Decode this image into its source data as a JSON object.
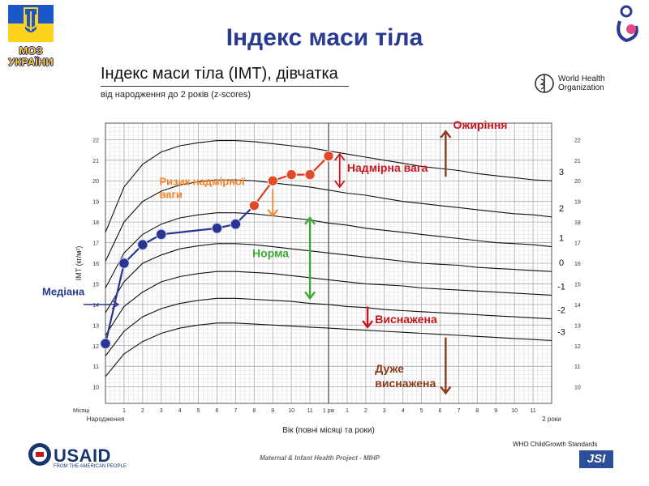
{
  "slide": {
    "title": "Індекс маси тіла",
    "logo_text": "МОЗ УКРАЇНИ",
    "who_logo_text": [
      "World Health",
      "Organization"
    ],
    "who_standards": "WHO ChildGrowth Standards",
    "usaid_text": "USAID",
    "usaid_sub": "FROM THE AMERICAN PEOPLE",
    "project_label": "Maternal & Infant Health Project - MIHP",
    "jsi_text": "JSI"
  },
  "chart_data": {
    "type": "line",
    "title": "Індекс маси тіла (IMT), дівчатка",
    "subtitle": "від народження до 2 років (z-scores)",
    "xlabel": "Вік (повні місяці та роки)",
    "ylabel": "IMT (кг/м²)",
    "xlim": [
      0,
      24
    ],
    "ylim": [
      9.2,
      22.8
    ],
    "grid": true,
    "y_ticks": [
      10,
      11,
      12,
      13,
      14,
      15,
      16,
      17,
      18,
      19,
      20,
      21,
      22
    ],
    "month_row_label": "Місяці",
    "x_top_labels": [
      "1",
      "2",
      "3",
      "4",
      "5",
      "6",
      "7",
      "8",
      "9",
      "10",
      "11",
      "1 рік",
      "1",
      "2",
      "3",
      "4",
      "5",
      "6",
      "7",
      "8",
      "9",
      "10",
      "11"
    ],
    "x_bottom_labels": {
      "birth": "Народження",
      "year2": "2 роки"
    },
    "z_labels": [
      "3",
      "2",
      "1",
      "0",
      "-1",
      "-2",
      "-3"
    ],
    "curve_months": [
      0,
      1,
      2,
      3,
      4,
      5,
      6,
      7,
      8,
      9,
      10,
      11,
      12,
      13,
      14,
      15,
      16,
      17,
      18,
      19,
      20,
      21,
      22,
      23,
      24
    ],
    "series": [
      {
        "name": "3",
        "values": [
          17.5,
          19.7,
          20.8,
          21.4,
          21.7,
          21.85,
          21.95,
          21.95,
          21.9,
          21.8,
          21.7,
          21.6,
          21.45,
          21.3,
          21.15,
          21.0,
          20.85,
          20.7,
          20.6,
          20.5,
          20.35,
          20.25,
          20.15,
          20.05,
          20.0
        ]
      },
      {
        "name": "2",
        "values": [
          16.1,
          18.0,
          19.0,
          19.5,
          19.8,
          19.95,
          20.05,
          20.05,
          20.0,
          19.9,
          19.8,
          19.7,
          19.55,
          19.4,
          19.3,
          19.15,
          19.0,
          18.9,
          18.8,
          18.7,
          18.6,
          18.5,
          18.4,
          18.35,
          18.25
        ]
      },
      {
        "name": "1",
        "values": [
          14.8,
          16.5,
          17.4,
          17.9,
          18.2,
          18.35,
          18.45,
          18.45,
          18.4,
          18.3,
          18.2,
          18.1,
          17.95,
          17.85,
          17.7,
          17.6,
          17.5,
          17.4,
          17.3,
          17.2,
          17.1,
          17.0,
          16.95,
          16.9,
          16.8
        ]
      },
      {
        "name": "0",
        "values": [
          13.6,
          15.1,
          16.0,
          16.4,
          16.7,
          16.85,
          16.95,
          16.95,
          16.9,
          16.8,
          16.7,
          16.6,
          16.5,
          16.4,
          16.3,
          16.2,
          16.1,
          16.0,
          15.95,
          15.9,
          15.8,
          15.75,
          15.7,
          15.65,
          15.6
        ]
      },
      {
        "name": "-1",
        "values": [
          12.5,
          13.9,
          14.6,
          15.1,
          15.35,
          15.5,
          15.6,
          15.6,
          15.55,
          15.5,
          15.4,
          15.3,
          15.2,
          15.1,
          15.0,
          14.95,
          14.9,
          14.8,
          14.75,
          14.7,
          14.65,
          14.6,
          14.55,
          14.5,
          14.45
        ]
      },
      {
        "name": "-2",
        "values": [
          11.5,
          12.7,
          13.4,
          13.8,
          14.05,
          14.2,
          14.3,
          14.3,
          14.25,
          14.2,
          14.15,
          14.05,
          14.0,
          13.9,
          13.85,
          13.75,
          13.7,
          13.65,
          13.6,
          13.55,
          13.5,
          13.45,
          13.4,
          13.35,
          13.3
        ]
      },
      {
        "name": "-3",
        "values": [
          10.5,
          11.6,
          12.2,
          12.6,
          12.85,
          13.0,
          13.1,
          13.1,
          13.05,
          13.0,
          12.95,
          12.9,
          12.85,
          12.8,
          12.75,
          12.7,
          12.65,
          12.6,
          12.55,
          12.5,
          12.45,
          12.4,
          12.35,
          12.3,
          12.25
        ]
      }
    ],
    "child_points": {
      "x": [
        0,
        1,
        2,
        3,
        6,
        7,
        8,
        9,
        10,
        11,
        12
      ],
      "y": [
        12.1,
        16.0,
        16.9,
        17.4,
        17.7,
        17.9,
        18.8,
        20.0,
        20.3,
        20.3,
        21.2
      ],
      "risk_from_index": 6
    },
    "annotations": {
      "obesity": "Ожиріння",
      "overweight": "Надмірна вага",
      "risk": "Ризик надмірної ваги",
      "norm": "Норма",
      "median": "Медіана",
      "wasted": "Виснажена",
      "severely_wasted": "Дуже виснажена"
    },
    "colors": {
      "curve": "#111111",
      "child_line_normal": "#2a3591",
      "child_dot_normal": "#2a3591",
      "child_line_risk": "#e03a1e",
      "child_dot_risk": "#e34a2a",
      "red_text": "#c8161d",
      "orange_text": "#f58220",
      "green": "#3aaa35",
      "dark_brown": "#8b3a1a",
      "median_text": "#2a3b94"
    }
  }
}
